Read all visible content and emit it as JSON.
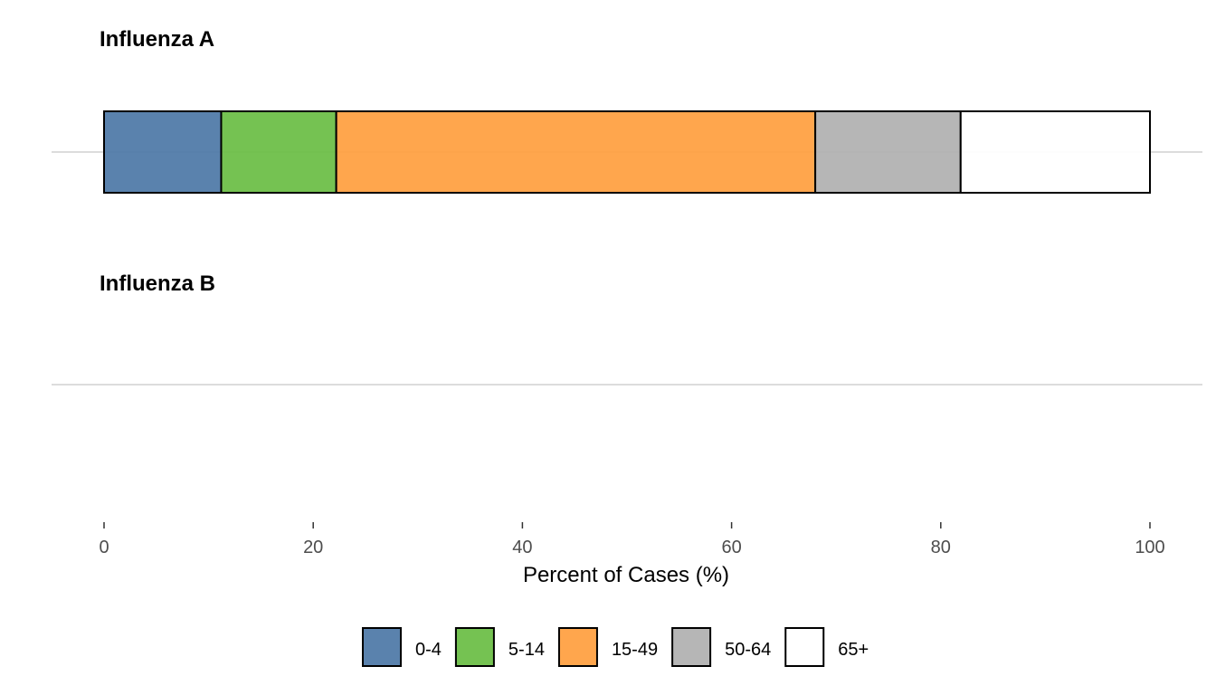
{
  "chart_data": {
    "type": "bar",
    "orientation": "horizontal",
    "stacked": true,
    "facets": [
      {
        "title": "Influenza A",
        "segments": [
          {
            "group": "0-4",
            "value": 11.2
          },
          {
            "group": "5-14",
            "value": 11.0
          },
          {
            "group": "15-49",
            "value": 45.8
          },
          {
            "group": "50-64",
            "value": 13.9
          },
          {
            "group": "65+",
            "value": 18.1
          }
        ]
      },
      {
        "title": "Influenza B",
        "segments": []
      }
    ],
    "xlabel": "Percent of Cases (%)",
    "xlim": [
      0,
      100
    ],
    "xticks": [
      "0",
      "20",
      "40",
      "60",
      "80",
      "100"
    ],
    "grid": true,
    "legend_position": "bottom",
    "legend": [
      {
        "label": "0-4",
        "color": "#4e79a7"
      },
      {
        "label": "5-14",
        "color": "#6abd45"
      },
      {
        "label": "15-49",
        "color": "#ff9f40"
      },
      {
        "label": "50-64",
        "color": "#b0b0b0"
      },
      {
        "label": "65+",
        "color": "#ffffff"
      }
    ]
  }
}
